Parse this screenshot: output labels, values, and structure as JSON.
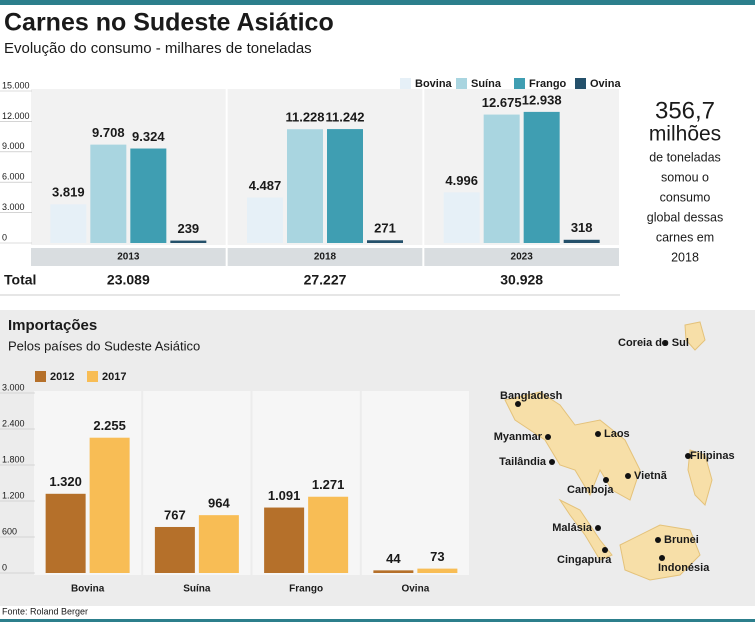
{
  "title": "Carnes no Sudeste Asiático",
  "subtitle": "Evolução do consumo - milhares de toneladas",
  "chart_data": [
    {
      "type": "bar",
      "categories": [
        "2013",
        "2018",
        "2023"
      ],
      "series": [
        {
          "name": "Bovina",
          "color": "#e6f0f7",
          "values": [
            3819,
            4487,
            4996
          ],
          "value_labels": [
            "3.819",
            "4.487",
            "4.996"
          ]
        },
        {
          "name": "Suína",
          "color": "#a9d5e0",
          "values": [
            9708,
            11228,
            12675
          ],
          "value_labels": [
            "9.708",
            "11.228",
            "12.675"
          ]
        },
        {
          "name": "Frango",
          "color": "#3f9eb2",
          "values": [
            9324,
            11242,
            12938
          ],
          "value_labels": [
            "9.324",
            "11.242",
            "12.938"
          ]
        },
        {
          "name": "Ovina",
          "color": "#24506a",
          "values": [
            239,
            271,
            318
          ]
        }
      ],
      "ylim": [
        0,
        15000
      ],
      "yticks": [
        0,
        {
          "value": 3000,
          "label": "3.000"
        },
        {
          "value": 6000,
          "label": "6.000"
        },
        {
          "value": 9000,
          "label": "9.000"
        },
        {
          "value": 12000,
          "label": "12.000"
        },
        {
          "value": 15000,
          "label": "15.000"
        }
      ],
      "legend": "top-right",
      "total_label": "Total",
      "totals": [
        23089,
        27227,
        30928
      ],
      "totals_labels": [
        "23.089",
        "27.227",
        "30.928"
      ]
    },
    {
      "type": "bar",
      "title": "Importações",
      "subtitle": "Pelos países do Sudeste Asiático",
      "categories": [
        "Bovina",
        "Suína",
        "Frango",
        "Ovina"
      ],
      "series": [
        {
          "name": "2012",
          "color": "#b5702a",
          "values": [
            1320,
            767,
            1091,
            44
          ],
          "value_labels": [
            "1.320",
            "767",
            "1.091",
            "44"
          ]
        },
        {
          "name": "2017",
          "color": "#f8bd55",
          "values": [
            2255,
            964,
            1271,
            73
          ],
          "value_labels": [
            "2.255",
            "964",
            "1.271",
            "73"
          ]
        }
      ],
      "ylim": [
        0,
        3000
      ],
      "yticks": [
        0,
        600,
        {
          "value": 1200,
          "label": "1.200"
        },
        {
          "value": 1800,
          "label": "1.800"
        },
        {
          "value": 2400,
          "label": "2.400"
        },
        {
          "value": 3000,
          "label": "3.000"
        }
      ],
      "legend": "top-left"
    }
  ],
  "callout": {
    "number": "356,7",
    "unit": "milhões",
    "lines": [
      "de toneladas",
      "somou o",
      "consumo",
      "global dessas",
      "carnes em",
      "2018"
    ]
  },
  "map_labels": [
    "Coreia do Sul",
    "Bangladesh",
    "Myanmar",
    "Laos",
    "Tailândia",
    "Vietnã",
    "Filipinas",
    "Camboja",
    "Malásia",
    "Brunei",
    "Cingapura",
    "Indonésia"
  ],
  "source": "Fonte: Roland Berger"
}
